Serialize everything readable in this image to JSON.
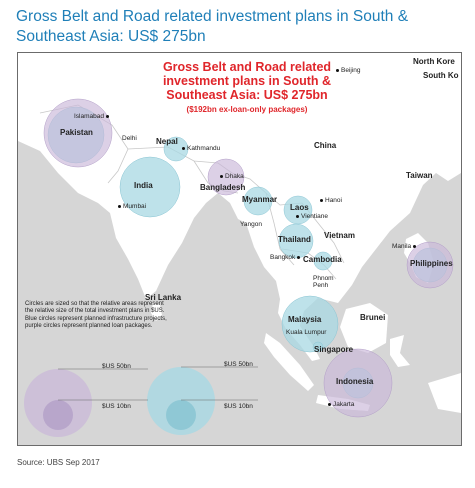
{
  "title": "Gross Belt and Road related investment plans in South & Southeast Asia: US$ 275bn",
  "map": {
    "inner_title": "Gross Belt and Road related investment plans in South & Southeast Asia: US$ 275bn",
    "inner_subtitle": "($192bn ex-loan-only packages)",
    "countries": {
      "pakistan": "Pakistan",
      "nepal": "Nepal",
      "china": "China",
      "india": "India",
      "bangladesh": "Bangladesh",
      "myanmar": "Myanmar",
      "laos": "Laos",
      "vietnam": "Vietnam",
      "thailand": "Thailand",
      "cambodia": "Cambodia",
      "taiwan": "Taiwan",
      "philippines": "Philippines",
      "sri_lanka": "Sri Lanka",
      "malaysia": "Malaysia",
      "brunei": "Brunei",
      "singapore": "Singapore",
      "indonesia": "Indonesia",
      "north_korea": "North Kore",
      "south_korea": "South Ko"
    },
    "cities": {
      "beijing": "Beijing",
      "islamabad": "Islamabad",
      "delhi": "Delhi",
      "kathmandu": "Kathmandu",
      "dhaka": "Dhaka",
      "mumbai": "Mumbai",
      "yangon": "Yangon",
      "hanoi": "Hanoi",
      "vientiane": "Vientiane",
      "bangkok": "Bangkok",
      "phnom_penh": "Phnom Penh",
      "manila": "Manila",
      "kuala_lumpur": "Kuala Lumpur",
      "jakarta": "Jakarta"
    },
    "note": "Circles are sized so that the relative areas represent the relative size of the total investment plans in $US. Blue circles represent planned infrastructure projects, purple circles represent planned loan packages.",
    "legend": {
      "purple_large": "$US 50bn",
      "purple_small": "$US 10bn",
      "blue_large": "$US 50bn",
      "blue_small": "$US 10bn"
    },
    "colors": {
      "land": "#ffffff",
      "sea": "#d6d6d6",
      "blue_circle": "#a8d8e3",
      "purple_circle": "#c9b7d9",
      "title_red": "#e0262b",
      "title_blue": "#1f7fb8"
    }
  },
  "source": "Source: UBS Sep 2017"
}
